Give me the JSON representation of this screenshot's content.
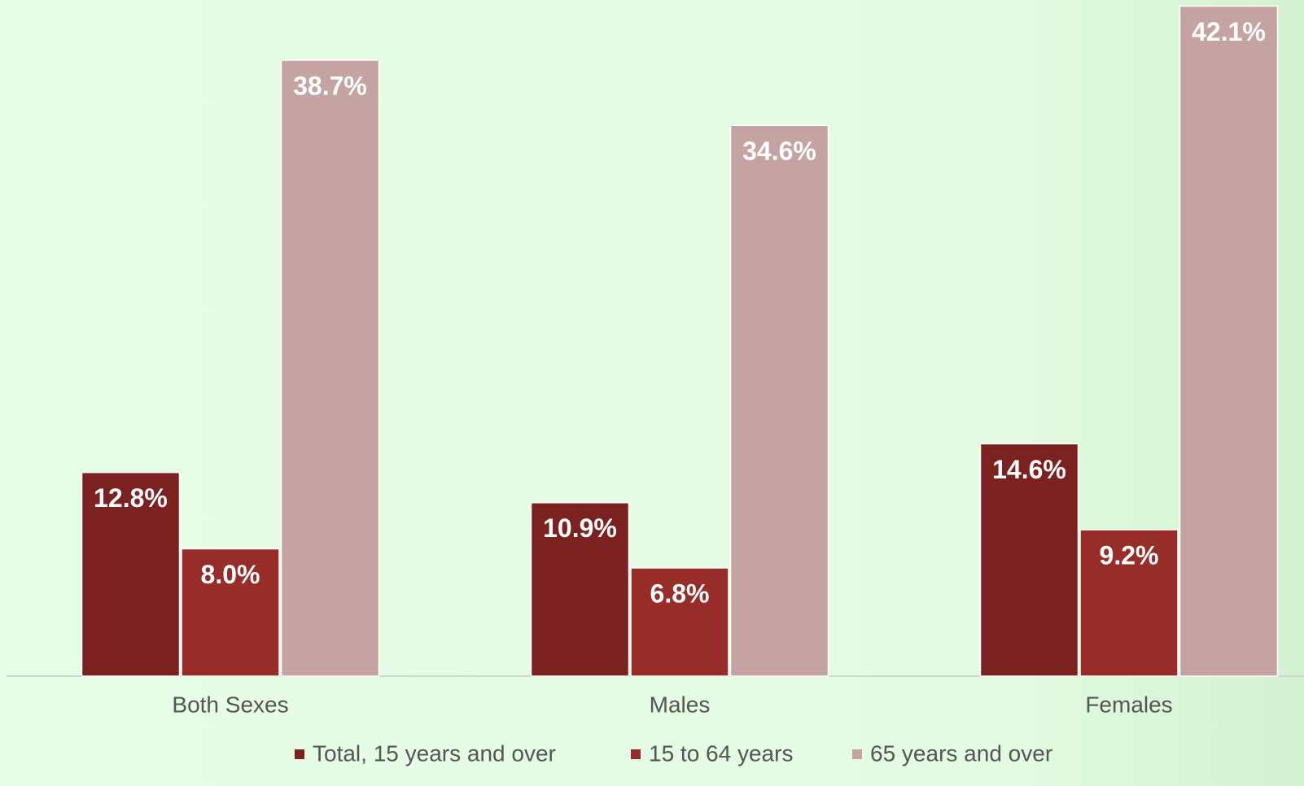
{
  "chart_data": {
    "type": "bar",
    "categories": [
      "Both Sexes",
      "Males",
      "Females"
    ],
    "series": [
      {
        "name": "Total, 15 years and over",
        "color": "#7b2220",
        "values": [
          12.8,
          10.9,
          14.6
        ],
        "value_labels": [
          "12.8%",
          "10.9%",
          "14.6%"
        ]
      },
      {
        "name": "15 to 64 years",
        "color": "#962d28",
        "values": [
          8.0,
          6.8,
          9.2
        ],
        "value_labels": [
          "8.0%",
          "6.8%",
          "9.2%"
        ]
      },
      {
        "name": "65 years and over",
        "color": "#c4a3a2",
        "values": [
          38.7,
          34.6,
          42.1
        ],
        "value_labels": [
          "38.7%",
          "34.6%",
          "42.1%"
        ]
      }
    ],
    "legend": "bottom"
  }
}
